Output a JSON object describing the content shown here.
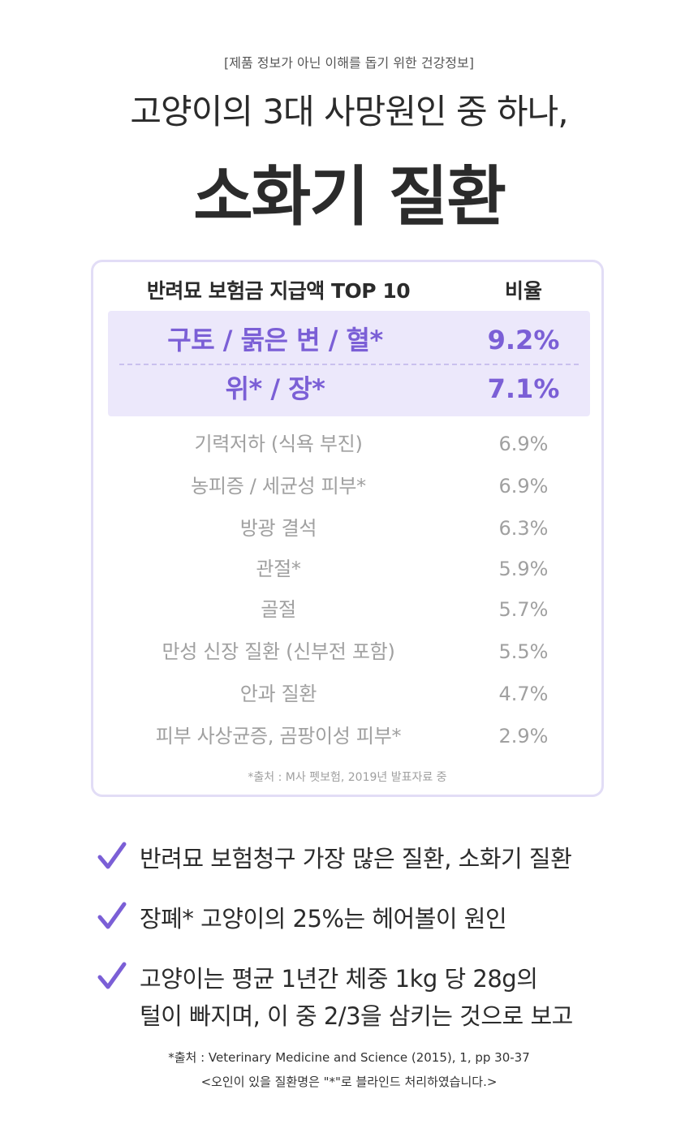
{
  "disclaimer": "[제품 정보가 아닌 이해를 돕기 위한 건강정보]",
  "headline": "고양이의 3대 사망원인 중 하나,",
  "title": "소화기 질환",
  "table": {
    "header_name": "반려묘 보험금 지급액 TOP 10",
    "header_value": "비율",
    "highlighted": [
      {
        "name": "구토 / 묽은 변 / 혈*",
        "value": "9.2%"
      },
      {
        "name": "위* / 장*",
        "value": "7.1%"
      }
    ],
    "rows": [
      {
        "name": "기력저하 (식욕 부진)",
        "value": "6.9%"
      },
      {
        "name": "농피증 / 세균성 피부*",
        "value": "6.9%"
      },
      {
        "name": "방광 결석",
        "value": "6.3%"
      },
      {
        "name": "관절*",
        "value": "5.9%"
      },
      {
        "name": "골절",
        "value": "5.7%"
      },
      {
        "name": "만성 신장 질환 (신부전 포함)",
        "value": "5.5%"
      },
      {
        "name": "안과 질환",
        "value": "4.7%"
      },
      {
        "name": "피부 사상균증, 곰팡이성 피부*",
        "value": "2.9%"
      }
    ],
    "source": "*출처 : M사 펫보험, 2019년 발표자료 중"
  },
  "checks": [
    {
      "line1": "반려묘 보험청구 가장 많은 질환, 소화기 질환"
    },
    {
      "line1": "장폐* 고양이의 25%는 헤어볼이 원인"
    },
    {
      "line1": "고양이는 평균 1년간 체중 1kg 당 28g의",
      "line2": "털이 빠지며, 이 중 2/3을 삼키는 것으로 보고"
    }
  ],
  "footer": {
    "source": "*출처 : Veterinary Medicine and Science (2015), 1, pp 30-37",
    "note": "<오인이 있을 질환명은 \"*\"로 블라인드 처리하였습니다.>"
  },
  "colors": {
    "accent": "#7b5fd6",
    "highlight_bg": "#ece8fb",
    "card_border": "#e2ddf6",
    "muted_text": "#a0a0a0",
    "check_icon": "#7b5fd6"
  },
  "icons": {
    "check": "check-icon"
  }
}
